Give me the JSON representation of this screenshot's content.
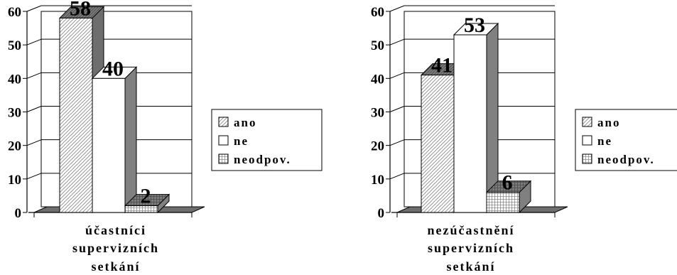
{
  "chart_data": [
    {
      "type": "bar",
      "title": "",
      "categories": [
        "účastníci supervizních setkání"
      ],
      "category_lines": [
        "účastníci",
        "supervizních",
        "setkání"
      ],
      "series": [
        {
          "name": "ano",
          "values": [
            58
          ]
        },
        {
          "name": "ne",
          "values": [
            40
          ]
        },
        {
          "name": "neodpov.",
          "values": [
            2
          ]
        }
      ],
      "ylim": [
        0,
        60
      ],
      "yticks": [
        0,
        10,
        20,
        30,
        40,
        50,
        60
      ],
      "grid": true,
      "legend": "right",
      "style": "3d"
    },
    {
      "type": "bar",
      "title": "",
      "categories": [
        "nezúčastnění supervizních setkání"
      ],
      "category_lines": [
        "nezúčastnění",
        "supervizních",
        "setkání"
      ],
      "series": [
        {
          "name": "ano",
          "values": [
            41
          ]
        },
        {
          "name": "ne",
          "values": [
            53
          ]
        },
        {
          "name": "neodpov.",
          "values": [
            6
          ]
        }
      ],
      "ylim": [
        0,
        60
      ],
      "yticks": [
        0,
        10,
        20,
        30,
        40,
        50,
        60
      ],
      "grid": true,
      "legend": "right",
      "style": "3d"
    }
  ],
  "colors": {
    "bar_fill": "#ffffff",
    "stroke": "#000000",
    "side": "#808080",
    "side_dark": "#6e6e6e",
    "floor": "#6e6e6e",
    "hatch": "#909090"
  }
}
